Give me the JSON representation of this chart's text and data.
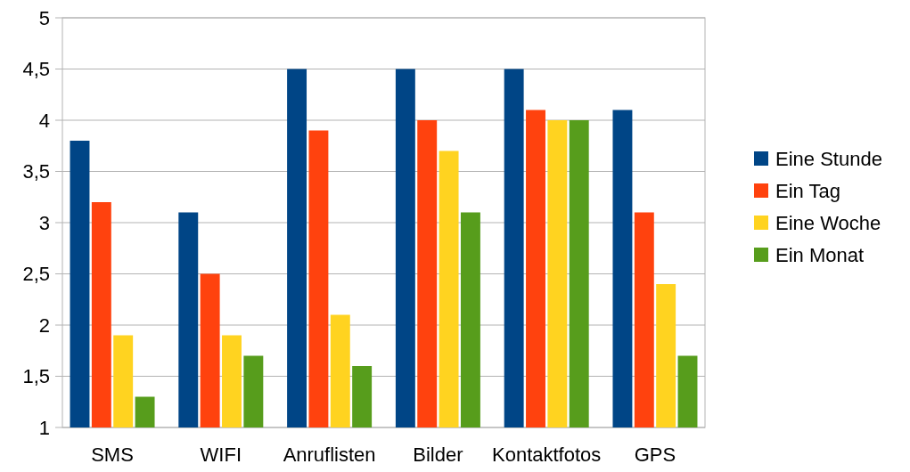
{
  "chart_data": {
    "type": "bar",
    "categories": [
      "SMS",
      "WIFI",
      "Anruflisten",
      "Bilder",
      "Kontaktfotos",
      "GPS"
    ],
    "series": [
      {
        "name": "Eine Stunde",
        "color": "#004586",
        "values": [
          3.8,
          3.1,
          4.5,
          4.5,
          4.5,
          4.1
        ]
      },
      {
        "name": "Ein Tag",
        "color": "#ff420e",
        "values": [
          3.2,
          2.5,
          3.9,
          4.0,
          4.1,
          3.1
        ]
      },
      {
        "name": "Eine Woche",
        "color": "#ffd320",
        "values": [
          1.9,
          1.9,
          2.1,
          3.7,
          4.0,
          2.4
        ]
      },
      {
        "name": "Ein Monat",
        "color": "#579d1c",
        "values": [
          1.3,
          1.7,
          1.6,
          3.1,
          4.0,
          1.7
        ]
      }
    ],
    "ylim": [
      1,
      5
    ],
    "yticks": [
      1,
      {
        "value": 1.5,
        "label": "1,5"
      },
      2,
      {
        "value": 2.5,
        "label": "2,5"
      },
      3,
      {
        "value": 3.5,
        "label": "3,5"
      },
      4,
      {
        "value": 4.5,
        "label": "4,5"
      },
      5
    ],
    "grid": "y",
    "legend": "right"
  }
}
